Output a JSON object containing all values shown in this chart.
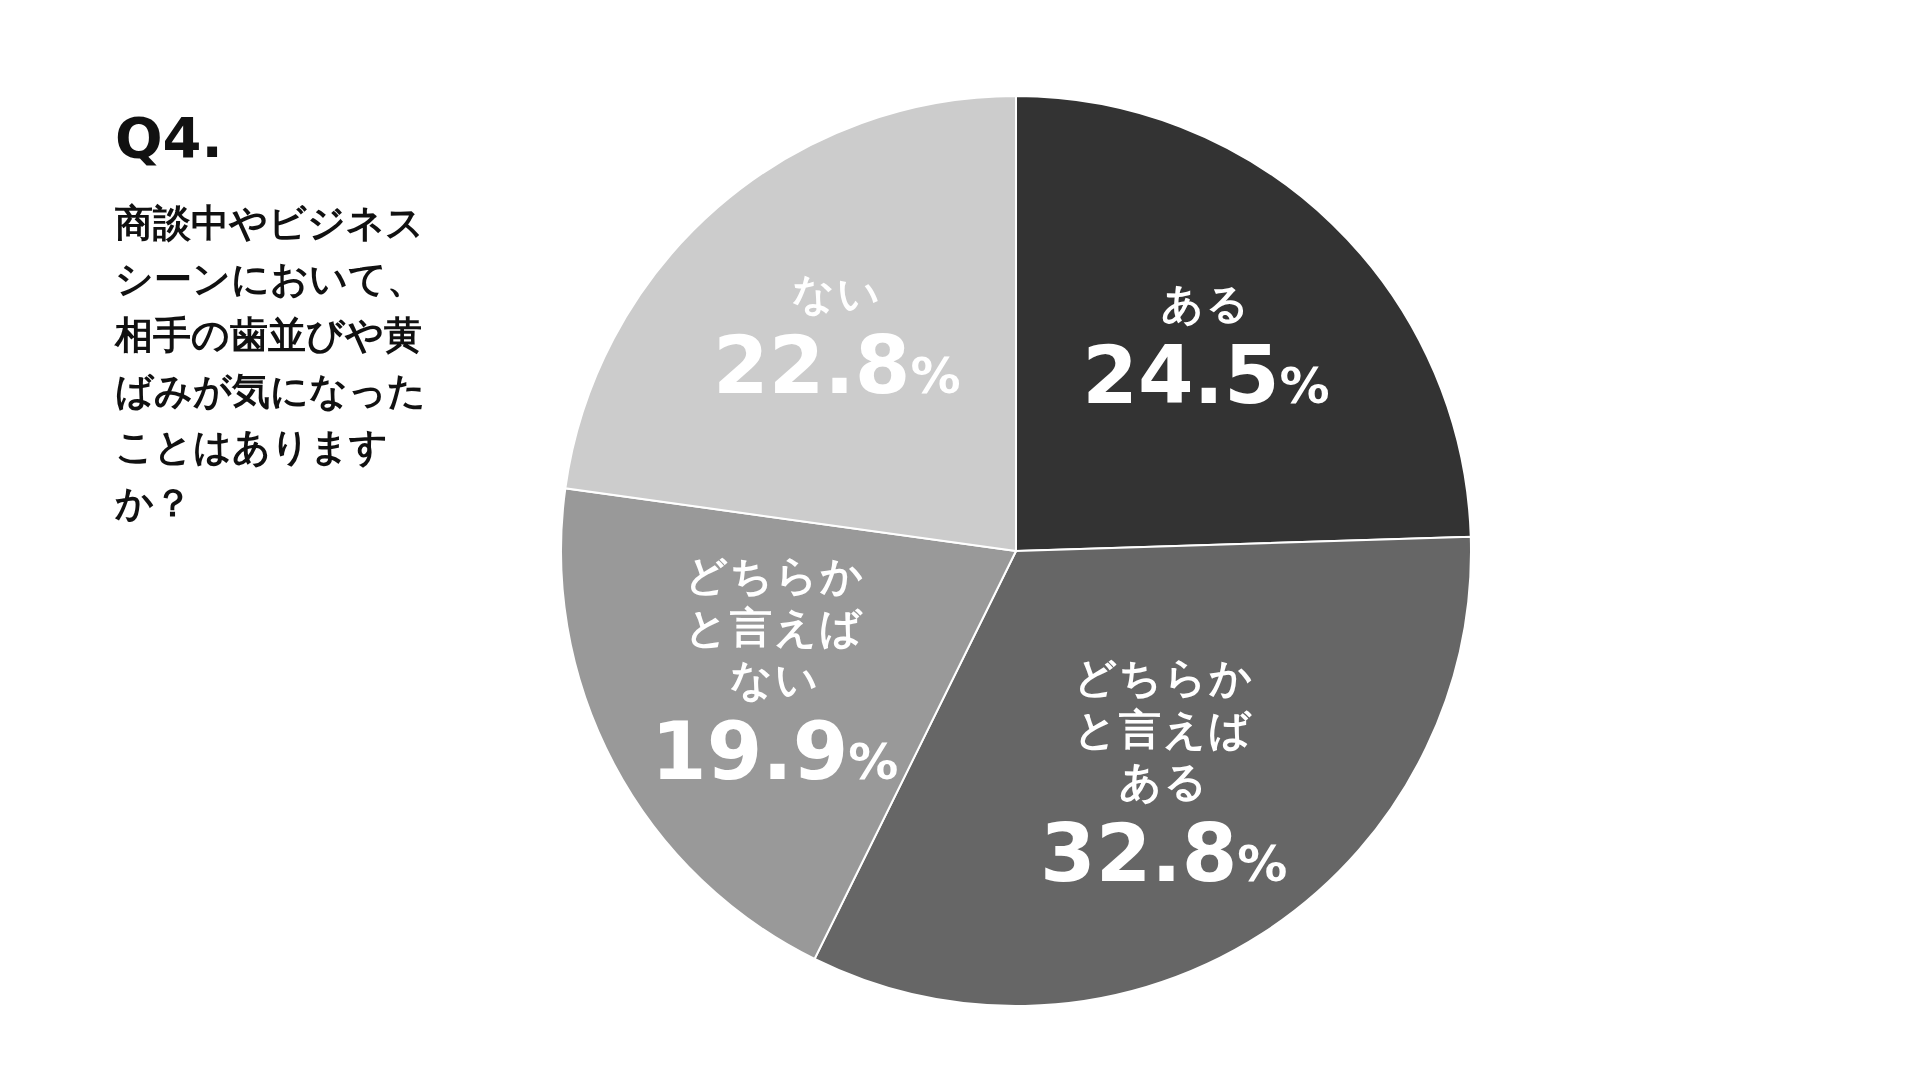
{
  "chart_data": {
    "type": "pie",
    "title": "Q4.",
    "subtitle": "商談中やビジネスシーンにおいて、相手の歯並びや黄ばみが気になったことはありますか？",
    "categories": [
      "ある",
      "どちらかと言えばある",
      "どちらかと言えばない",
      "ない"
    ],
    "values": [
      24.5,
      32.8,
      19.9,
      22.8
    ],
    "value_labels": [
      "24.5%",
      "32.8%",
      "19.9%",
      "22.8%"
    ],
    "colors": [
      "#333333",
      "#666666",
      "#999999",
      "#cccccc"
    ],
    "legend": false
  }
}
